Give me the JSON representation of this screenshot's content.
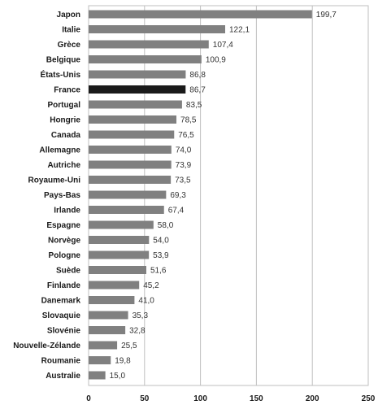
{
  "chart_data": {
    "type": "bar",
    "orientation": "horizontal",
    "categories": [
      "Japon",
      "Italie",
      "Grèce",
      "Belgique",
      "États-Unis",
      "France",
      "Portugal",
      "Hongrie",
      "Canada",
      "Allemagne",
      "Autriche",
      "Royaume-Uni",
      "Pays-Bas",
      "Irlande",
      "Espagne",
      "Norvège",
      "Pologne",
      "Suède",
      "Finlande",
      "Danemark",
      "Slovaquie",
      "Slovénie",
      "Nouvelle-Zélande",
      "Roumanie",
      "Australie"
    ],
    "values": [
      199.7,
      122.1,
      107.4,
      100.9,
      86.8,
      86.7,
      83.5,
      78.5,
      76.5,
      74.0,
      73.9,
      73.5,
      69.3,
      67.4,
      58.0,
      54.0,
      53.9,
      51.6,
      45.2,
      41.0,
      35.3,
      32.8,
      25.5,
      19.8,
      15.0
    ],
    "value_labels": [
      "199,7",
      "122,1",
      "107,4",
      "100,9",
      "86,8",
      "86,7",
      "83,5",
      "78,5",
      "76,5",
      "74,0",
      "73,9",
      "73,5",
      "69,3",
      "67,4",
      "58,0",
      "54,0",
      "53,9",
      "51,6",
      "45,2",
      "41,0",
      "35,3",
      "32,8",
      "25,5",
      "19,8",
      "15,0"
    ],
    "highlight": "France",
    "xlim": [
      0,
      250
    ],
    "xticks": [
      0,
      50,
      100,
      150,
      200,
      250
    ],
    "xtick_labels": [
      "0",
      "50",
      "100",
      "150",
      "200",
      "250"
    ],
    "grid": "vertical",
    "title": "",
    "xlabel": "",
    "ylabel": "",
    "colors": {
      "bar": "#808080",
      "highlight": "#1a1a1a",
      "grid": "#bfbfbf",
      "frame": "#bfbfbf"
    }
  }
}
